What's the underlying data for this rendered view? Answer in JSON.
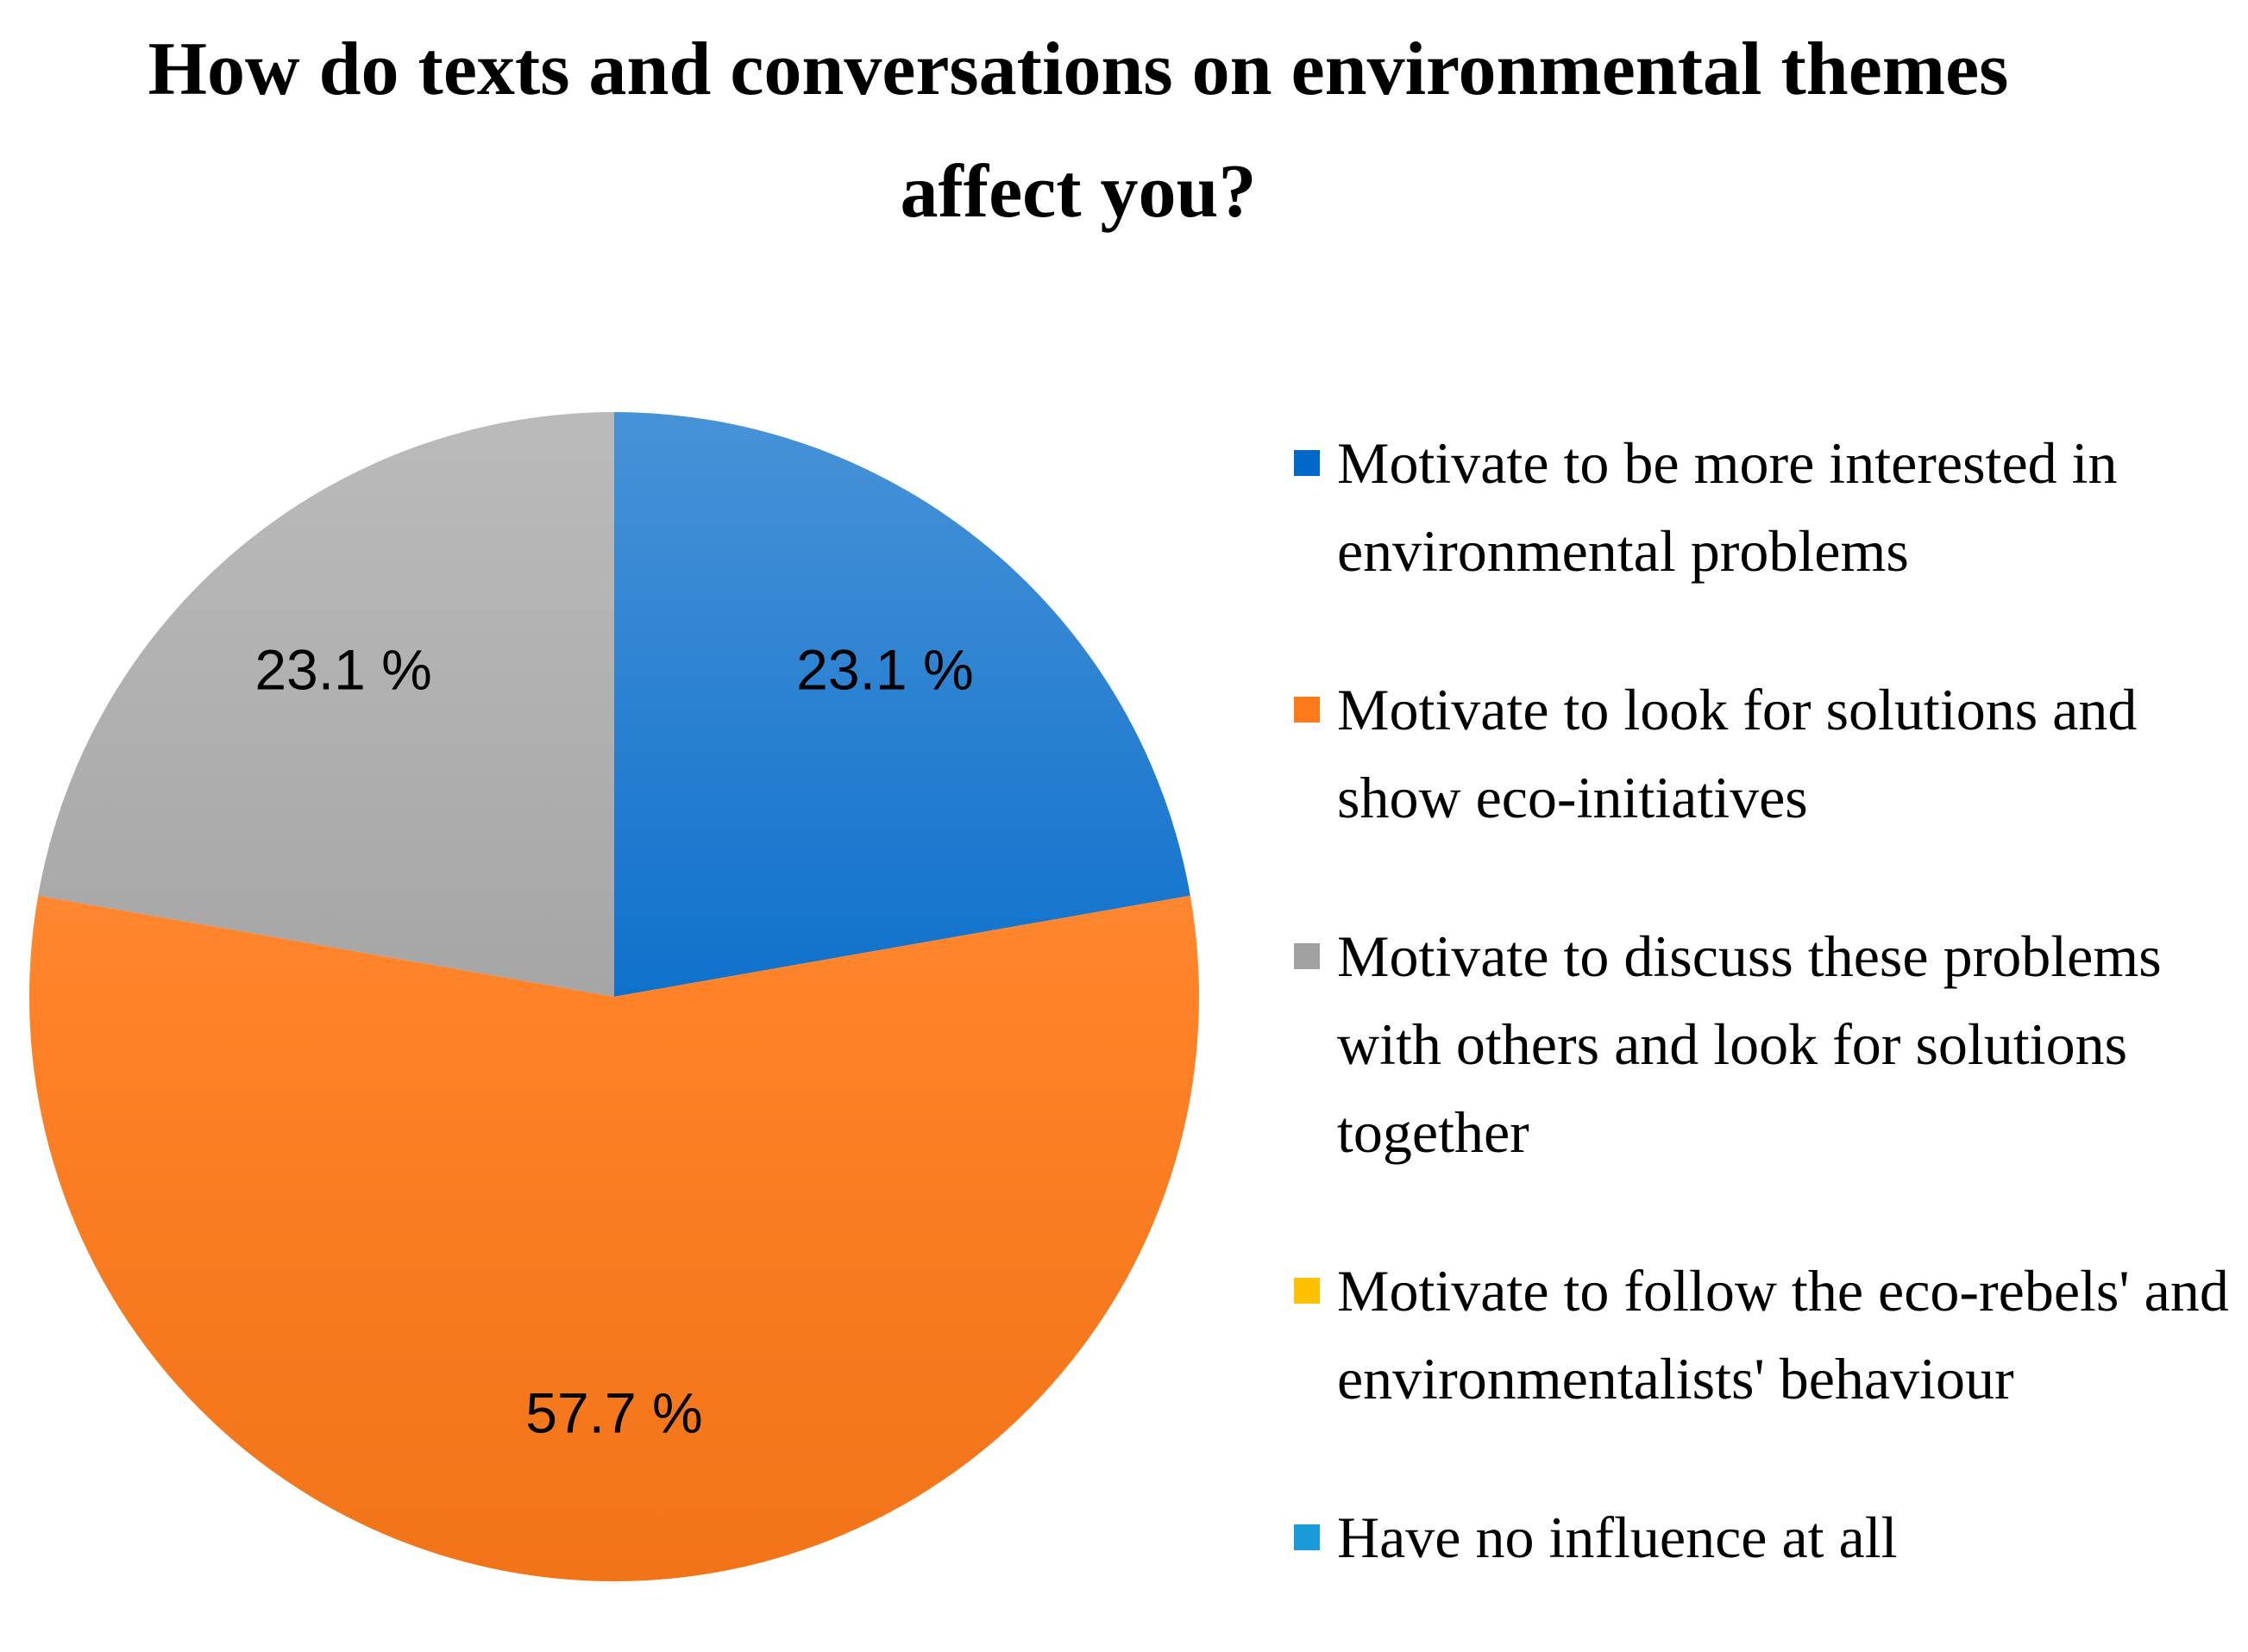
{
  "chart_data": {
    "type": "pie",
    "title": "How do texts and conversations on environmental themes affect you?",
    "categories": [
      "Motivate to be more interested in environmental problems",
      "Motivate to look for solutions and show eco-initiatives",
      "Motivate to discuss these problems with others and look for solutions together",
      "Motivate to follow the eco-rebels' and environmentalists' behaviour",
      "Have no influence at all"
    ],
    "values": [
      23.1,
      57.7,
      23.1,
      0,
      0
    ],
    "value_labels": [
      "23.1 %",
      "57.7 %",
      "23.1 %",
      null,
      null
    ],
    "colors": [
      "#0068c8",
      "#ff7a1a",
      "#a0a0a0",
      "#ffc000",
      "#1a9ad8"
    ],
    "legend": "right"
  }
}
